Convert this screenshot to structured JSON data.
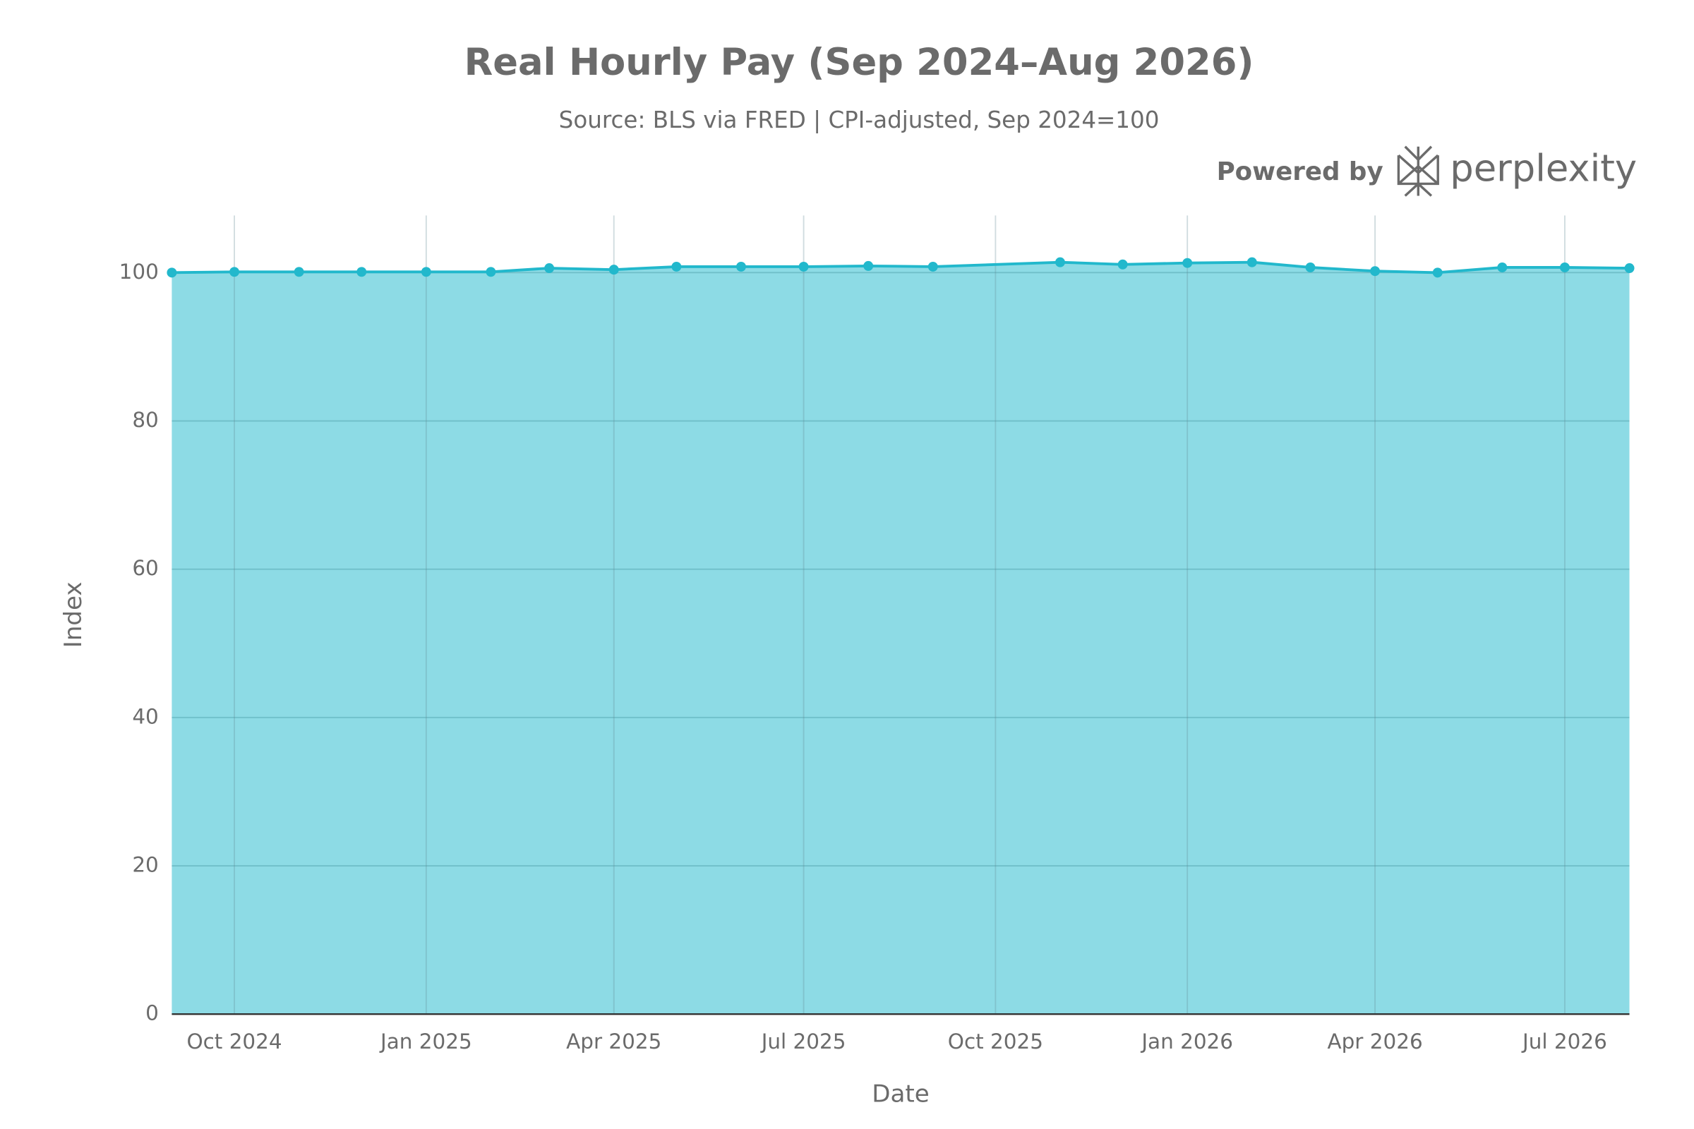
{
  "chart_data": {
    "type": "area",
    "title": "Real Hourly Pay (Sep 2024–Aug 2026)",
    "subtitle": "Source: BLS via FRED | CPI-adjusted, Sep 2024=100",
    "branding": {
      "prefix": "Powered by",
      "name": "perplexity"
    },
    "x_label": "Date",
    "y_label": "Index",
    "x": [
      "2024-09",
      "2024-10",
      "2024-11",
      "2024-12",
      "2025-01",
      "2025-02",
      "2025-03",
      "2025-04",
      "2025-05",
      "2025-06",
      "2025-07",
      "2025-08",
      "2025-09",
      "2025-11",
      "2025-12",
      "2026-01",
      "2026-02",
      "2026-03",
      "2026-04",
      "2026-05",
      "2026-06",
      "2026-07",
      "2026-08"
    ],
    "series": [
      {
        "name": "Index",
        "color": "#22b8cc",
        "fill": "#8ddbe5",
        "values": [
          100,
          100.1,
          100.1,
          100.1,
          100.1,
          100.1,
          100.6,
          100.4,
          100.8,
          100.8,
          100.8,
          100.9,
          100.8,
          101.4,
          101.1,
          101.3,
          101.4,
          100.7,
          100.2,
          100,
          100.7,
          100.7,
          100.6
        ]
      }
    ],
    "xlim": [
      "2024-09",
      "2026-08"
    ],
    "xticks": [
      {
        "value": "2024-10",
        "label": "Oct 2024"
      },
      {
        "value": "2025-01",
        "label": "Jan 2025"
      },
      {
        "value": "2025-04",
        "label": "Apr 2025"
      },
      {
        "value": "2025-07",
        "label": "Jul 2025"
      },
      {
        "value": "2025-10",
        "label": "Oct 2025"
      },
      {
        "value": "2026-01",
        "label": "Jan 2026"
      },
      {
        "value": "2026-04",
        "label": "Apr 2026"
      },
      {
        "value": "2026-07",
        "label": "Jul 2026"
      }
    ],
    "ylim": [
      0,
      107.7
    ],
    "yticks": [
      0,
      20,
      40,
      60,
      80,
      100
    ],
    "grid": true
  }
}
